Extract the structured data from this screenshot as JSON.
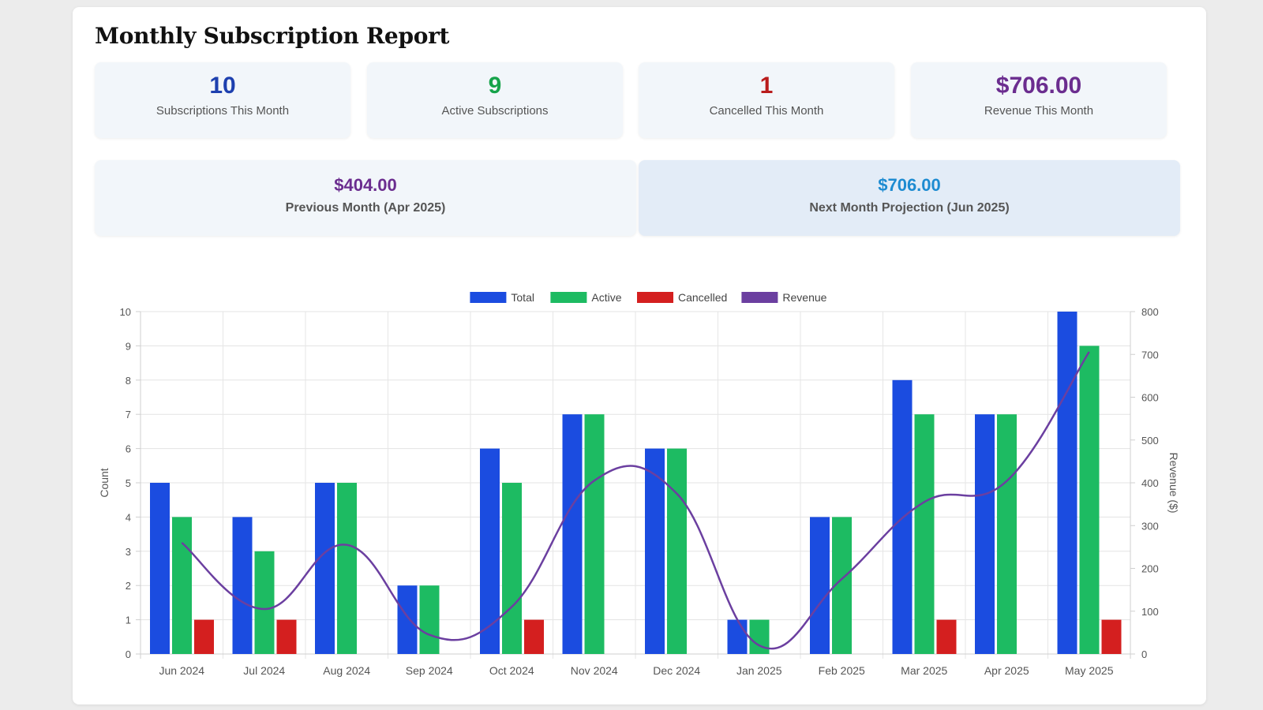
{
  "report": {
    "title": "Monthly Subscription Report",
    "stats": [
      {
        "value": "10",
        "label": "Subscriptions This Month",
        "color": "#1e40af"
      },
      {
        "value": "9",
        "label": "Active Subscriptions",
        "color": "#16a34a"
      },
      {
        "value": "1",
        "label": "Cancelled This Month",
        "color": "#b91c1c"
      },
      {
        "value": "$706.00",
        "label": "Revenue This Month",
        "color": "#6b2d8f"
      }
    ],
    "previous": {
      "value": "$404.00",
      "label": "Previous Month (Apr 2025)",
      "color": "#6b2d8f"
    },
    "projection": {
      "value": "$706.00",
      "label": "Next Month Projection (Jun 2025)",
      "color": "#1d8bd1"
    }
  },
  "chart_data": {
    "type": "bar",
    "title": "",
    "categories": [
      "Jun 2024",
      "Jul 2024",
      "Aug 2024",
      "Sep 2024",
      "Oct 2024",
      "Nov 2024",
      "Dec 2024",
      "Jan 2025",
      "Feb 2025",
      "Mar 2025",
      "Apr 2025",
      "May 2025"
    ],
    "series": [
      {
        "name": "Total",
        "type": "bar",
        "axis": "left",
        "color": "#1b4ce0",
        "values": [
          5,
          4,
          5,
          2,
          6,
          7,
          6,
          1,
          4,
          8,
          7,
          10
        ]
      },
      {
        "name": "Active",
        "type": "bar",
        "axis": "left",
        "color": "#1dbb62",
        "values": [
          4,
          3,
          5,
          2,
          5,
          7,
          6,
          1,
          4,
          7,
          7,
          9
        ]
      },
      {
        "name": "Cancelled",
        "type": "bar",
        "axis": "left",
        "color": "#d41f1f",
        "values": [
          1,
          1,
          0,
          0,
          1,
          0,
          0,
          0,
          0,
          1,
          0,
          1
        ]
      },
      {
        "name": "Revenue",
        "type": "line",
        "axis": "right",
        "color": "#6b3fa0",
        "values": [
          260,
          105,
          255,
          45,
          110,
          405,
          375,
          20,
          175,
          355,
          404,
          706
        ]
      }
    ],
    "ylabel_left": "Count",
    "ylabel_right": "Revenue ($)",
    "ylim_left": [
      0,
      10
    ],
    "ylim_right": [
      0,
      800
    ],
    "yticks_left": [
      "0",
      "1",
      "2",
      "3",
      "4",
      "5",
      "6",
      "7",
      "8",
      "9",
      "10"
    ],
    "yticks_right": [
      "0",
      "100",
      "200",
      "300",
      "400",
      "500",
      "600",
      "700",
      "800"
    ],
    "legend": "top-center",
    "grid": true
  }
}
